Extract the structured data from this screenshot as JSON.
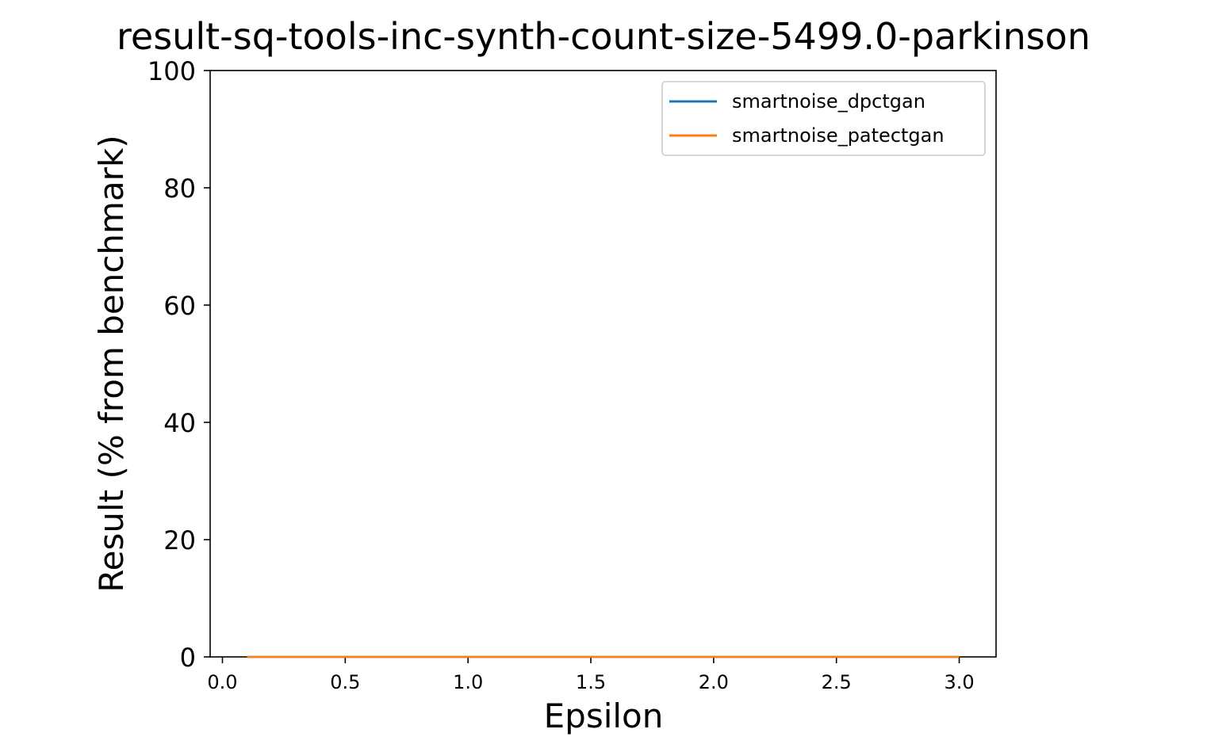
{
  "chart_data": {
    "type": "line",
    "title": "result-sq-tools-inc-synth-count-size-5499.0-parkinson",
    "xlabel": "Epsilon",
    "ylabel": "Result (% from benchmark)",
    "xlim": [
      -0.05,
      3.15
    ],
    "ylim": [
      0,
      100
    ],
    "x_ticks": [
      0.0,
      0.5,
      1.0,
      1.5,
      2.0,
      2.5,
      3.0
    ],
    "x_tick_labels": [
      "0.0",
      "0.5",
      "1.0",
      "1.5",
      "2.0",
      "2.5",
      "3.0"
    ],
    "y_ticks": [
      0,
      20,
      40,
      60,
      80,
      100
    ],
    "y_tick_labels": [
      "0",
      "20",
      "40",
      "60",
      "80",
      "100"
    ],
    "grid": false,
    "legend_position": "top-right",
    "x": [
      0.1,
      3.0
    ],
    "series": [
      {
        "name": "smartnoise_dpctgan",
        "color": "#1f77b4",
        "values": [
          0,
          0
        ]
      },
      {
        "name": "smartnoise_patectgan",
        "color": "#ff7f0e",
        "values": [
          0,
          0
        ]
      }
    ]
  }
}
